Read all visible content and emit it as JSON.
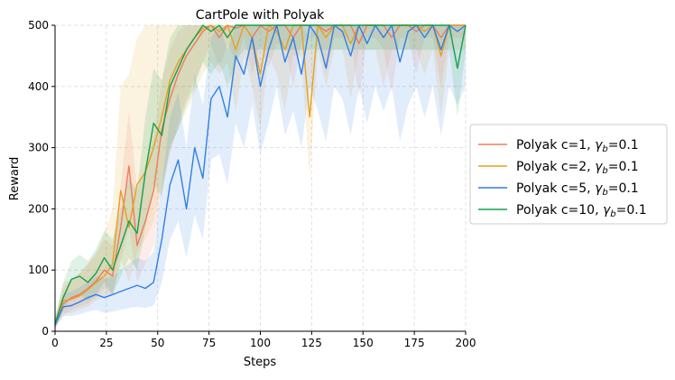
{
  "chart_data": {
    "type": "line",
    "title": "CartPole with Polyak",
    "xlabel": "Steps",
    "ylabel": "Reward",
    "xlim": [
      0,
      200
    ],
    "ylim": [
      0,
      500
    ],
    "xticks": [
      0,
      25,
      50,
      75,
      100,
      125,
      150,
      175,
      200
    ],
    "yticks": [
      0,
      100,
      200,
      300,
      400,
      500
    ],
    "grid": true,
    "legend_position": "center-right, outside plot",
    "shaded_band": "min-max range around each series",
    "x": [
      0,
      4,
      8,
      12,
      16,
      20,
      24,
      28,
      32,
      36,
      40,
      44,
      48,
      52,
      56,
      60,
      64,
      68,
      72,
      76,
      80,
      84,
      88,
      92,
      96,
      100,
      104,
      108,
      112,
      116,
      120,
      124,
      128,
      132,
      136,
      140,
      144,
      148,
      152,
      156,
      160,
      164,
      168,
      172,
      176,
      180,
      184,
      188,
      192,
      196,
      200
    ],
    "series": [
      {
        "name": "Polyak c=1, γb=0.1",
        "label_main": "Polyak c=1, ",
        "label_sym": "γ",
        "label_sub": "b",
        "label_tail": "=0.1",
        "color": "#f07a60",
        "values": [
          10,
          45,
          55,
          60,
          70,
          82,
          100,
          90,
          170,
          270,
          140,
          180,
          230,
          330,
          380,
          420,
          450,
          470,
          490,
          500,
          480,
          500,
          495,
          500,
          480,
          500,
          490,
          500,
          500,
          480,
          500,
          500,
          500,
          490,
          500,
          500,
          500,
          470,
          500,
          500,
          500,
          480,
          500,
          500,
          490,
          500,
          500,
          480,
          500,
          500,
          500
        ],
        "lower": [
          5,
          25,
          35,
          40,
          45,
          55,
          70,
          60,
          110,
          170,
          80,
          110,
          140,
          230,
          290,
          340,
          380,
          410,
          440,
          470,
          430,
          470,
          440,
          480,
          420,
          470,
          430,
          470,
          470,
          400,
          470,
          480,
          480,
          420,
          480,
          480,
          480,
          380,
          480,
          480,
          460,
          390,
          480,
          480,
          420,
          480,
          480,
          400,
          480,
          480,
          480
        ],
        "upper": [
          20,
          70,
          85,
          95,
          110,
          125,
          150,
          140,
          240,
          360,
          230,
          270,
          320,
          410,
          460,
          490,
          500,
          500,
          500,
          500,
          500,
          500,
          500,
          500,
          500,
          500,
          500,
          500,
          500,
          500,
          500,
          500,
          500,
          500,
          500,
          500,
          500,
          500,
          500,
          500,
          500,
          500,
          500,
          500,
          500,
          500,
          500,
          500,
          500,
          500,
          500
        ]
      },
      {
        "name": "Polyak c=2, γb=0.1",
        "label_main": "Polyak c=2, ",
        "label_sym": "γ",
        "label_sub": "b",
        "label_tail": "=0.1",
        "color": "#e5a021",
        "values": [
          12,
          50,
          52,
          58,
          68,
          80,
          90,
          110,
          230,
          170,
          240,
          260,
          300,
          350,
          410,
          440,
          460,
          480,
          495,
          500,
          490,
          500,
          460,
          500,
          480,
          420,
          500,
          490,
          460,
          500,
          500,
          350,
          500,
          480,
          500,
          500,
          470,
          500,
          500,
          500,
          480,
          500,
          500,
          500,
          500,
          490,
          500,
          450,
          500,
          500,
          500
        ],
        "lower": [
          5,
          30,
          30,
          35,
          40,
          50,
          55,
          60,
          120,
          80,
          130,
          150,
          180,
          240,
          300,
          330,
          360,
          390,
          420,
          440,
          420,
          440,
          360,
          450,
          400,
          330,
          450,
          420,
          360,
          450,
          450,
          250,
          460,
          400,
          460,
          460,
          380,
          460,
          460,
          460,
          400,
          460,
          460,
          460,
          460,
          420,
          460,
          350,
          460,
          460,
          460
        ],
        "upper": [
          25,
          80,
          85,
          95,
          110,
          130,
          160,
          200,
          400,
          420,
          480,
          500,
          500,
          500,
          500,
          500,
          500,
          500,
          500,
          500,
          500,
          500,
          500,
          500,
          500,
          500,
          500,
          500,
          500,
          500,
          500,
          480,
          500,
          500,
          500,
          500,
          500,
          500,
          500,
          500,
          500,
          500,
          500,
          500,
          500,
          500,
          500,
          500,
          500,
          500,
          500
        ]
      },
      {
        "name": "Polyak c=5, γb=0.1",
        "label_main": "Polyak c=5, ",
        "label_sym": "γ",
        "label_sub": "b",
        "label_tail": "=0.1",
        "color": "#2f7fe6",
        "values": [
          10,
          40,
          42,
          48,
          55,
          60,
          55,
          60,
          65,
          70,
          75,
          70,
          80,
          150,
          240,
          280,
          200,
          300,
          250,
          380,
          400,
          350,
          450,
          420,
          480,
          400,
          460,
          500,
          440,
          480,
          420,
          500,
          480,
          430,
          500,
          490,
          450,
          500,
          470,
          500,
          480,
          500,
          440,
          490,
          500,
          480,
          500,
          460,
          500,
          490,
          500
        ],
        "lower": [
          5,
          25,
          25,
          28,
          32,
          35,
          30,
          32,
          35,
          38,
          40,
          38,
          42,
          80,
          150,
          180,
          120,
          190,
          150,
          280,
          290,
          240,
          340,
          300,
          370,
          290,
          340,
          400,
          320,
          360,
          300,
          400,
          360,
          310,
          400,
          380,
          320,
          400,
          340,
          400,
          360,
          400,
          310,
          370,
          400,
          350,
          400,
          320,
          400,
          370,
          400
        ],
        "upper": [
          18,
          60,
          65,
          72,
          80,
          90,
          85,
          90,
          100,
          110,
          120,
          115,
          130,
          240,
          350,
          390,
          300,
          420,
          370,
          480,
          500,
          460,
          500,
          500,
          500,
          500,
          500,
          500,
          500,
          500,
          500,
          500,
          500,
          500,
          500,
          500,
          500,
          500,
          500,
          500,
          500,
          500,
          500,
          500,
          500,
          500,
          500,
          500,
          500,
          500,
          500
        ]
      },
      {
        "name": "Polyak c=10, γb=0.1",
        "label_main": "Polyak c=10, ",
        "label_sym": "γ",
        "label_sub": "b",
        "label_tail": "=0.1",
        "color": "#13a04a",
        "values": [
          12,
          55,
          85,
          90,
          80,
          95,
          120,
          100,
          140,
          180,
          160,
          260,
          340,
          320,
          400,
          430,
          460,
          480,
          500,
          490,
          500,
          480,
          500,
          500,
          500,
          500,
          500,
          500,
          500,
          500,
          500,
          500,
          500,
          500,
          500,
          500,
          500,
          500,
          500,
          500,
          500,
          500,
          500,
          500,
          500,
          500,
          500,
          500,
          500,
          430,
          500
        ],
        "lower": [
          5,
          35,
          55,
          60,
          50,
          60,
          80,
          60,
          90,
          120,
          100,
          170,
          240,
          220,
          300,
          330,
          370,
          400,
          440,
          420,
          440,
          400,
          440,
          460,
          460,
          460,
          460,
          460,
          460,
          460,
          460,
          460,
          460,
          460,
          460,
          460,
          460,
          460,
          460,
          460,
          460,
          460,
          460,
          460,
          460,
          460,
          460,
          460,
          460,
          350,
          460
        ],
        "upper": [
          22,
          80,
          115,
          125,
          115,
          135,
          165,
          150,
          200,
          250,
          230,
          350,
          430,
          410,
          480,
          500,
          500,
          500,
          500,
          500,
          500,
          500,
          500,
          500,
          500,
          500,
          500,
          500,
          500,
          500,
          500,
          500,
          500,
          500,
          500,
          500,
          500,
          500,
          500,
          500,
          500,
          500,
          500,
          500,
          500,
          500,
          500,
          500,
          500,
          500,
          500
        ]
      }
    ]
  }
}
